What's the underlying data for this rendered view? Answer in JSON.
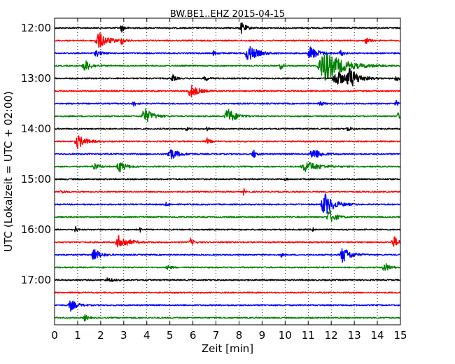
{
  "chart_data": {
    "type": "line",
    "title": "BW.BE1..EHZ 2015-04-15",
    "xlabel": "Zeit  [min]",
    "ylabel": "UTC (Lokalzeit = UTC + 02:00)",
    "xlim": [
      0,
      15
    ],
    "x_ticks": [
      "0",
      "1",
      "2",
      "3",
      "4",
      "5",
      "6",
      "7",
      "8",
      "9",
      "10",
      "11",
      "12",
      "13",
      "14",
      "15"
    ],
    "y_ticks": [
      {
        "label": "12:00",
        "row": 0
      },
      {
        "label": "13:00",
        "row": 4
      },
      {
        "label": "14:00",
        "row": 8
      },
      {
        "label": "15:00",
        "row": 12
      },
      {
        "label": "16:00",
        "row": 16
      },
      {
        "label": "17:00",
        "row": 20
      }
    ],
    "grid_x": "dotted",
    "trace_interval_min": 15,
    "colors": [
      "#000000",
      "#ff0000",
      "#0000ff",
      "#008000"
    ],
    "traces": [
      {
        "start": "12:00",
        "events": [
          [
            2.9,
            6,
            0.2
          ],
          [
            8.1,
            8,
            0.3
          ]
        ]
      },
      {
        "start": "12:15",
        "events": [
          [
            1.9,
            12,
            0.6
          ],
          [
            2.9,
            5,
            0.2
          ],
          [
            13.5,
            5,
            0.2
          ]
        ]
      },
      {
        "start": "12:30",
        "events": [
          [
            1.8,
            5,
            0.3
          ],
          [
            6.9,
            4,
            0.2
          ],
          [
            8.4,
            12,
            0.6
          ],
          [
            11.1,
            10,
            0.5
          ],
          [
            12.4,
            5,
            0.2
          ]
        ]
      },
      {
        "start": "12:45",
        "events": [
          [
            1.3,
            9,
            0.4
          ],
          [
            9.8,
            5,
            0.2
          ],
          [
            11.7,
            22,
            1.2
          ]
        ]
      },
      {
        "start": "13:00",
        "events": [
          [
            5.1,
            6,
            0.2
          ],
          [
            6.5,
            5,
            0.2
          ],
          [
            12.2,
            13,
            0.6
          ],
          [
            12.8,
            13,
            0.6
          ],
          [
            14.8,
            5,
            0.2
          ]
        ]
      },
      {
        "start": "13:15",
        "events": [
          [
            5.9,
            10,
            0.5
          ]
        ]
      },
      {
        "start": "13:30",
        "events": [
          [
            3.4,
            4,
            0.2
          ],
          [
            11.5,
            4,
            0.2
          ],
          [
            14.8,
            4,
            0.2
          ]
        ]
      },
      {
        "start": "13:45",
        "events": [
          [
            3.9,
            12,
            0.5
          ],
          [
            7.5,
            12,
            0.5
          ],
          [
            14.9,
            5,
            0.2
          ]
        ]
      },
      {
        "start": "14:00",
        "events": [
          [
            5.7,
            4,
            0.1
          ],
          [
            6.6,
            4,
            0.1
          ],
          [
            12.7,
            4,
            0.2
          ]
        ]
      },
      {
        "start": "14:15",
        "events": [
          [
            1.0,
            10,
            0.5
          ],
          [
            6.6,
            5,
            0.2
          ]
        ]
      },
      {
        "start": "14:30",
        "events": [
          [
            5.0,
            9,
            0.5
          ],
          [
            8.6,
            8,
            0.2
          ],
          [
            11.2,
            9,
            0.5
          ]
        ]
      },
      {
        "start": "14:45",
        "events": [
          [
            1.7,
            6,
            0.3
          ],
          [
            2.8,
            9,
            0.4
          ],
          [
            10.9,
            8,
            0.8
          ]
        ]
      },
      {
        "start": "15:00",
        "events": [
          [
            10.0,
            4,
            0.1
          ]
        ]
      },
      {
        "start": "15:15",
        "events": [
          [
            8.2,
            5,
            0.1
          ],
          [
            0.3,
            3,
            0.2
          ]
        ]
      },
      {
        "start": "15:30",
        "events": [
          [
            11.7,
            17,
            0.6
          ],
          [
            4.8,
            3,
            0.2
          ]
        ]
      },
      {
        "start": "15:45",
        "events": [
          [
            11.9,
            11,
            0.4
          ]
        ]
      },
      {
        "start": "16:00",
        "events": [
          [
            0.9,
            6,
            0.1
          ],
          [
            3.7,
            4,
            0.1
          ],
          [
            11.2,
            4,
            0.1
          ]
        ]
      },
      {
        "start": "16:15",
        "events": [
          [
            2.8,
            10,
            0.6
          ],
          [
            5.9,
            5,
            0.2
          ],
          [
            14.7,
            9,
            0.3
          ]
        ]
      },
      {
        "start": "16:30",
        "events": [
          [
            1.7,
            10,
            0.4
          ],
          [
            9.8,
            5,
            0.1
          ],
          [
            12.5,
            12,
            0.5
          ]
        ]
      },
      {
        "start": "16:45",
        "events": [
          [
            4.9,
            4,
            0.2
          ],
          [
            14.3,
            8,
            0.3
          ]
        ]
      },
      {
        "start": "17:00",
        "events": [
          [
            2.3,
            3,
            0.4
          ]
        ]
      },
      {
        "start": "17:15",
        "events": []
      },
      {
        "start": "17:30",
        "events": [
          [
            0.7,
            8,
            0.4
          ]
        ]
      },
      {
        "start": "17:45",
        "events": [
          [
            1.3,
            5,
            0.2
          ]
        ]
      }
    ]
  }
}
